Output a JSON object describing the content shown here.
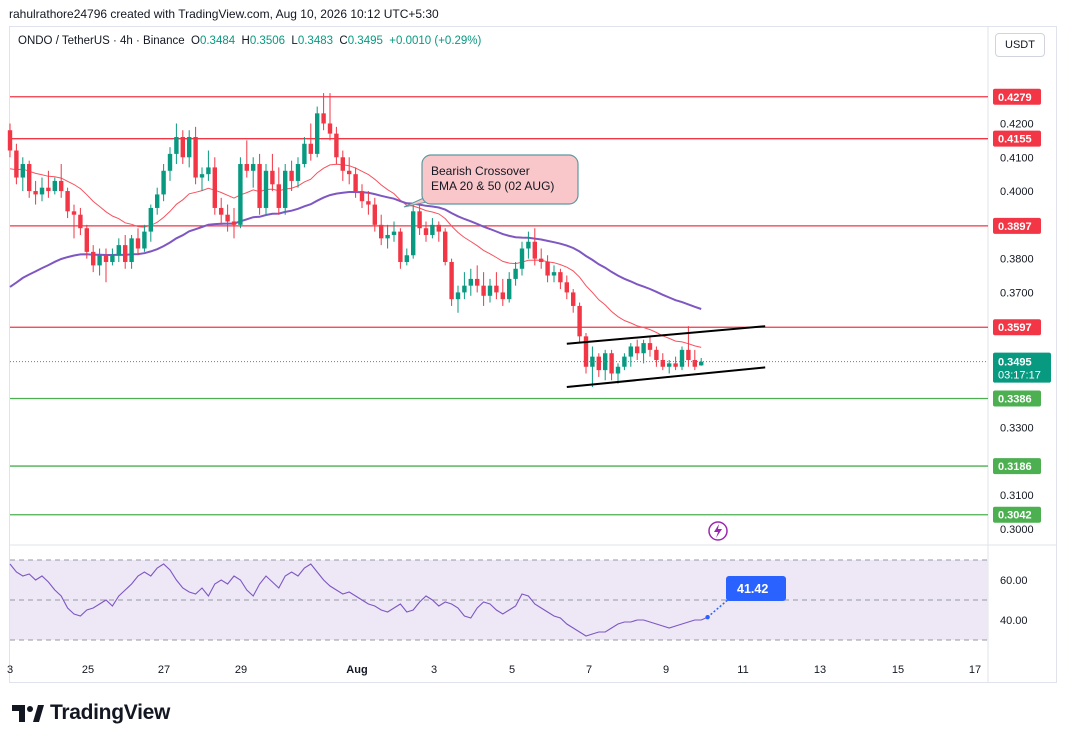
{
  "credit": "rahulrathore24796 created with TradingView.com, Aug 10, 2026 10:12 UTC+5:30",
  "legend": {
    "symbol": "ONDO / TetherUS · 4h · Binance",
    "o_label": "O",
    "o": "0.3484",
    "h_label": "H",
    "h": "0.3506",
    "l_label": "L",
    "l": "0.3483",
    "c_label": "C",
    "c": "0.3495",
    "change": "+0.0010 (+0.29%)"
  },
  "currency_button": "USDT",
  "brand": "TradingView",
  "colors": {
    "up": "#089981",
    "down": "#f23645",
    "resistance": "#f23645",
    "support": "#4caf50",
    "ema20": "#f7525f",
    "ema50": "#7e57c2",
    "rsi": "#7e57c2",
    "rsi_band": "#ede7f6",
    "price_tag": "#089981",
    "rsi_badge": "#2962ff"
  },
  "chart_data": [
    {
      "type": "candlestick",
      "title": "ONDO / TetherUS · 4h · Binance",
      "ylim": [
        0.2985,
        0.4305
      ],
      "y_ticks": [
        {
          "value": 0.42,
          "label": "0.4200"
        },
        {
          "value": 0.41,
          "label": "0.4100"
        },
        {
          "value": 0.4,
          "label": "0.4000"
        },
        {
          "value": 0.38,
          "label": "0.3800"
        },
        {
          "value": 0.37,
          "label": "0.3700"
        },
        {
          "value": 0.33,
          "label": "0.3300"
        },
        {
          "value": 0.31,
          "label": "0.3100"
        },
        {
          "value": 0.3,
          "label": "0.3000"
        }
      ],
      "x_ticks": [
        "3",
        "25",
        "27",
        "29",
        "Aug",
        "3",
        "5",
        "7",
        "9",
        "11",
        "13",
        "15",
        "17"
      ],
      "resistance_levels": [
        {
          "value": 0.4279,
          "label": "0.4279"
        },
        {
          "value": 0.4155,
          "label": "0.4155"
        },
        {
          "value": 0.3897,
          "label": "0.3897"
        },
        {
          "value": 0.3597,
          "label": "0.3597"
        }
      ],
      "support_levels": [
        {
          "value": 0.3386,
          "label": "0.3386"
        },
        {
          "value": 0.3186,
          "label": "0.3186"
        },
        {
          "value": 0.3042,
          "label": "0.3042"
        }
      ],
      "last_price": {
        "value": 0.3495,
        "label": "0.3495",
        "countdown": "03:17:17"
      },
      "annotation": {
        "line1": "Bearish Crossover",
        "line2": "EMA 20 & 50 (02 AUG)"
      },
      "channel": {
        "upper": [
          {
            "bar": 87,
            "price": 0.3548
          },
          {
            "bar": 118,
            "price": 0.36
          }
        ],
        "lower": [
          {
            "bar": 87,
            "price": 0.342
          },
          {
            "bar": 118,
            "price": 0.3478
          }
        ]
      },
      "candles": [
        {
          "o": 0.418,
          "h": 0.42,
          "l": 0.41,
          "c": 0.412
        },
        {
          "o": 0.412,
          "h": 0.414,
          "l": 0.402,
          "c": 0.404
        },
        {
          "o": 0.404,
          "h": 0.41,
          "l": 0.4,
          "c": 0.408
        },
        {
          "o": 0.408,
          "h": 0.409,
          "l": 0.398,
          "c": 0.4
        },
        {
          "o": 0.4,
          "h": 0.403,
          "l": 0.396,
          "c": 0.399
        },
        {
          "o": 0.399,
          "h": 0.404,
          "l": 0.397,
          "c": 0.401
        },
        {
          "o": 0.401,
          "h": 0.406,
          "l": 0.398,
          "c": 0.4
        },
        {
          "o": 0.4,
          "h": 0.404,
          "l": 0.399,
          "c": 0.403
        },
        {
          "o": 0.403,
          "h": 0.408,
          "l": 0.398,
          "c": 0.4
        },
        {
          "o": 0.4,
          "h": 0.401,
          "l": 0.392,
          "c": 0.394
        },
        {
          "o": 0.394,
          "h": 0.396,
          "l": 0.386,
          "c": 0.393
        },
        {
          "o": 0.393,
          "h": 0.395,
          "l": 0.387,
          "c": 0.389
        },
        {
          "o": 0.389,
          "h": 0.39,
          "l": 0.38,
          "c": 0.382
        },
        {
          "o": 0.382,
          "h": 0.384,
          "l": 0.376,
          "c": 0.378
        },
        {
          "o": 0.378,
          "h": 0.383,
          "l": 0.375,
          "c": 0.381
        },
        {
          "o": 0.381,
          "h": 0.383,
          "l": 0.373,
          "c": 0.379
        },
        {
          "o": 0.379,
          "h": 0.383,
          "l": 0.378,
          "c": 0.381
        },
        {
          "o": 0.381,
          "h": 0.386,
          "l": 0.379,
          "c": 0.384
        },
        {
          "o": 0.384,
          "h": 0.387,
          "l": 0.377,
          "c": 0.379
        },
        {
          "o": 0.379,
          "h": 0.387,
          "l": 0.377,
          "c": 0.386
        },
        {
          "o": 0.386,
          "h": 0.389,
          "l": 0.381,
          "c": 0.383
        },
        {
          "o": 0.383,
          "h": 0.39,
          "l": 0.382,
          "c": 0.388
        },
        {
          "o": 0.388,
          "h": 0.396,
          "l": 0.385,
          "c": 0.395
        },
        {
          "o": 0.395,
          "h": 0.401,
          "l": 0.393,
          "c": 0.399
        },
        {
          "o": 0.399,
          "h": 0.408,
          "l": 0.397,
          "c": 0.406
        },
        {
          "o": 0.406,
          "h": 0.413,
          "l": 0.403,
          "c": 0.411
        },
        {
          "o": 0.411,
          "h": 0.42,
          "l": 0.408,
          "c": 0.416
        },
        {
          "o": 0.416,
          "h": 0.418,
          "l": 0.408,
          "c": 0.41
        },
        {
          "o": 0.41,
          "h": 0.418,
          "l": 0.407,
          "c": 0.416
        },
        {
          "o": 0.416,
          "h": 0.419,
          "l": 0.402,
          "c": 0.404
        },
        {
          "o": 0.404,
          "h": 0.407,
          "l": 0.4,
          "c": 0.405
        },
        {
          "o": 0.405,
          "h": 0.412,
          "l": 0.403,
          "c": 0.407
        },
        {
          "o": 0.407,
          "h": 0.41,
          "l": 0.393,
          "c": 0.395
        },
        {
          "o": 0.395,
          "h": 0.398,
          "l": 0.39,
          "c": 0.393
        },
        {
          "o": 0.393,
          "h": 0.396,
          "l": 0.388,
          "c": 0.391
        },
        {
          "o": 0.391,
          "h": 0.395,
          "l": 0.386,
          "c": 0.39
        },
        {
          "o": 0.39,
          "h": 0.41,
          "l": 0.389,
          "c": 0.408
        },
        {
          "o": 0.408,
          "h": 0.415,
          "l": 0.404,
          "c": 0.406
        },
        {
          "o": 0.406,
          "h": 0.41,
          "l": 0.401,
          "c": 0.408
        },
        {
          "o": 0.408,
          "h": 0.411,
          "l": 0.393,
          "c": 0.395
        },
        {
          "o": 0.395,
          "h": 0.408,
          "l": 0.393,
          "c": 0.406
        },
        {
          "o": 0.406,
          "h": 0.411,
          "l": 0.4,
          "c": 0.402
        },
        {
          "o": 0.402,
          "h": 0.407,
          "l": 0.393,
          "c": 0.395
        },
        {
          "o": 0.395,
          "h": 0.408,
          "l": 0.393,
          "c": 0.406
        },
        {
          "o": 0.406,
          "h": 0.409,
          "l": 0.4,
          "c": 0.403
        },
        {
          "o": 0.403,
          "h": 0.41,
          "l": 0.401,
          "c": 0.408
        },
        {
          "o": 0.408,
          "h": 0.416,
          "l": 0.407,
          "c": 0.414
        },
        {
          "o": 0.414,
          "h": 0.42,
          "l": 0.409,
          "c": 0.411
        },
        {
          "o": 0.411,
          "h": 0.425,
          "l": 0.41,
          "c": 0.423
        },
        {
          "o": 0.423,
          "h": 0.429,
          "l": 0.418,
          "c": 0.42
        },
        {
          "o": 0.42,
          "h": 0.429,
          "l": 0.415,
          "c": 0.417
        },
        {
          "o": 0.417,
          "h": 0.419,
          "l": 0.408,
          "c": 0.41
        },
        {
          "o": 0.41,
          "h": 0.412,
          "l": 0.403,
          "c": 0.406
        },
        {
          "o": 0.406,
          "h": 0.41,
          "l": 0.402,
          "c": 0.405
        },
        {
          "o": 0.405,
          "h": 0.407,
          "l": 0.398,
          "c": 0.4
        },
        {
          "o": 0.4,
          "h": 0.402,
          "l": 0.395,
          "c": 0.397
        },
        {
          "o": 0.397,
          "h": 0.4,
          "l": 0.393,
          "c": 0.396
        },
        {
          "o": 0.396,
          "h": 0.398,
          "l": 0.388,
          "c": 0.39
        },
        {
          "o": 0.39,
          "h": 0.393,
          "l": 0.384,
          "c": 0.386
        },
        {
          "o": 0.386,
          "h": 0.39,
          "l": 0.383,
          "c": 0.387
        },
        {
          "o": 0.387,
          "h": 0.391,
          "l": 0.385,
          "c": 0.388
        },
        {
          "o": 0.388,
          "h": 0.389,
          "l": 0.377,
          "c": 0.379
        },
        {
          "o": 0.379,
          "h": 0.383,
          "l": 0.378,
          "c": 0.381
        },
        {
          "o": 0.381,
          "h": 0.396,
          "l": 0.38,
          "c": 0.394
        },
        {
          "o": 0.394,
          "h": 0.396,
          "l": 0.387,
          "c": 0.389
        },
        {
          "o": 0.389,
          "h": 0.391,
          "l": 0.385,
          "c": 0.387
        },
        {
          "o": 0.387,
          "h": 0.392,
          "l": 0.386,
          "c": 0.39
        },
        {
          "o": 0.39,
          "h": 0.391,
          "l": 0.385,
          "c": 0.388
        },
        {
          "o": 0.388,
          "h": 0.389,
          "l": 0.378,
          "c": 0.379
        },
        {
          "o": 0.379,
          "h": 0.38,
          "l": 0.366,
          "c": 0.368
        },
        {
          "o": 0.368,
          "h": 0.372,
          "l": 0.364,
          "c": 0.37
        },
        {
          "o": 0.37,
          "h": 0.376,
          "l": 0.368,
          "c": 0.372
        },
        {
          "o": 0.372,
          "h": 0.377,
          "l": 0.369,
          "c": 0.374
        },
        {
          "o": 0.374,
          "h": 0.378,
          "l": 0.37,
          "c": 0.372
        },
        {
          "o": 0.372,
          "h": 0.376,
          "l": 0.366,
          "c": 0.369
        },
        {
          "o": 0.369,
          "h": 0.374,
          "l": 0.367,
          "c": 0.372
        },
        {
          "o": 0.372,
          "h": 0.376,
          "l": 0.368,
          "c": 0.37
        },
        {
          "o": 0.37,
          "h": 0.374,
          "l": 0.366,
          "c": 0.368
        },
        {
          "o": 0.368,
          "h": 0.376,
          "l": 0.367,
          "c": 0.374
        },
        {
          "o": 0.374,
          "h": 0.379,
          "l": 0.372,
          "c": 0.377
        },
        {
          "o": 0.377,
          "h": 0.385,
          "l": 0.375,
          "c": 0.383
        },
        {
          "o": 0.383,
          "h": 0.388,
          "l": 0.38,
          "c": 0.385
        },
        {
          "o": 0.385,
          "h": 0.389,
          "l": 0.378,
          "c": 0.38
        },
        {
          "o": 0.38,
          "h": 0.383,
          "l": 0.377,
          "c": 0.379
        },
        {
          "o": 0.379,
          "h": 0.381,
          "l": 0.373,
          "c": 0.375
        },
        {
          "o": 0.375,
          "h": 0.378,
          "l": 0.373,
          "c": 0.376
        },
        {
          "o": 0.376,
          "h": 0.377,
          "l": 0.371,
          "c": 0.373
        },
        {
          "o": 0.373,
          "h": 0.375,
          "l": 0.368,
          "c": 0.37
        },
        {
          "o": 0.37,
          "h": 0.371,
          "l": 0.364,
          "c": 0.366
        },
        {
          "o": 0.366,
          "h": 0.367,
          "l": 0.355,
          "c": 0.357
        },
        {
          "o": 0.357,
          "h": 0.358,
          "l": 0.346,
          "c": 0.348
        },
        {
          "o": 0.348,
          "h": 0.354,
          "l": 0.342,
          "c": 0.351
        },
        {
          "o": 0.351,
          "h": 0.352,
          "l": 0.345,
          "c": 0.347
        },
        {
          "o": 0.347,
          "h": 0.353,
          "l": 0.344,
          "c": 0.352
        },
        {
          "o": 0.352,
          "h": 0.353,
          "l": 0.344,
          "c": 0.346
        },
        {
          "o": 0.346,
          "h": 0.349,
          "l": 0.343,
          "c": 0.348
        },
        {
          "o": 0.348,
          "h": 0.352,
          "l": 0.347,
          "c": 0.351
        },
        {
          "o": 0.351,
          "h": 0.355,
          "l": 0.348,
          "c": 0.354
        },
        {
          "o": 0.354,
          "h": 0.356,
          "l": 0.35,
          "c": 0.352
        },
        {
          "o": 0.352,
          "h": 0.356,
          "l": 0.349,
          "c": 0.355
        },
        {
          "o": 0.355,
          "h": 0.357,
          "l": 0.351,
          "c": 0.353
        },
        {
          "o": 0.353,
          "h": 0.354,
          "l": 0.348,
          "c": 0.35
        },
        {
          "o": 0.35,
          "h": 0.352,
          "l": 0.347,
          "c": 0.348
        },
        {
          "o": 0.348,
          "h": 0.35,
          "l": 0.346,
          "c": 0.349
        },
        {
          "o": 0.349,
          "h": 0.351,
          "l": 0.347,
          "c": 0.348
        },
        {
          "o": 0.348,
          "h": 0.354,
          "l": 0.347,
          "c": 0.353
        },
        {
          "o": 0.353,
          "h": 0.36,
          "l": 0.348,
          "c": 0.35
        },
        {
          "o": 0.35,
          "h": 0.353,
          "l": 0.347,
          "c": 0.348
        },
        {
          "o": 0.3484,
          "h": 0.3506,
          "l": 0.3483,
          "c": 0.3495
        }
      ]
    },
    {
      "type": "line",
      "name": "RSI",
      "ylim": [
        25,
        75
      ],
      "band": [
        30,
        70
      ],
      "mid": 50,
      "y_ticks": [
        {
          "value": 60,
          "label": "60.00"
        },
        {
          "value": 40,
          "label": "40.00"
        }
      ],
      "last_value": {
        "value": 41.42,
        "label": "41.42"
      },
      "values": [
        68,
        64,
        62,
        63,
        60,
        62,
        59,
        55,
        52,
        46,
        43,
        42,
        45,
        46,
        48,
        50,
        47,
        52,
        55,
        58,
        62,
        64,
        62,
        66,
        68,
        65,
        60,
        56,
        54,
        53,
        56,
        52,
        58,
        60,
        58,
        62,
        60,
        55,
        52,
        58,
        62,
        59,
        56,
        62,
        64,
        62,
        66,
        68,
        64,
        60,
        57,
        55,
        53,
        54,
        52,
        50,
        48,
        47,
        45,
        44,
        46,
        48,
        44,
        45,
        49,
        52,
        50,
        47,
        49,
        48,
        46,
        42,
        41,
        46,
        49,
        48,
        45,
        43,
        45,
        47,
        53,
        52,
        48,
        46,
        44,
        42,
        41,
        38,
        36,
        34,
        32,
        33,
        34,
        34,
        36,
        38,
        39,
        39,
        40,
        40,
        39,
        38,
        37,
        36,
        37,
        38,
        39,
        40,
        40,
        41.42
      ]
    }
  ]
}
